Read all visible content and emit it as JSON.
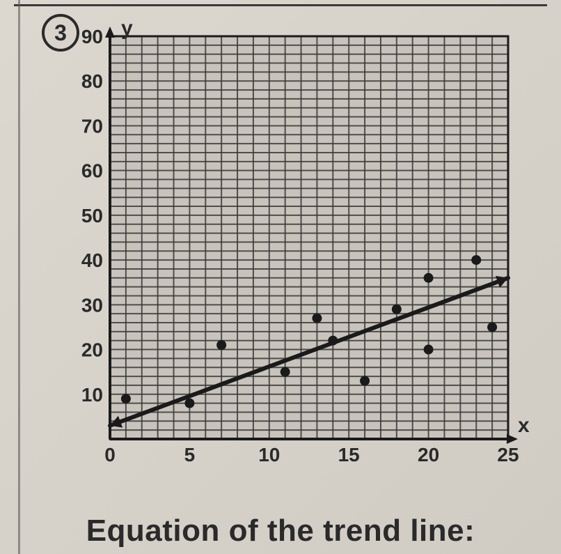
{
  "problem": {
    "number": "3"
  },
  "caption": "Equation of the trend line:",
  "chart": {
    "type": "scatter",
    "x_axis_label": "x",
    "y_axis_label": "y",
    "xlim": [
      0,
      25
    ],
    "ylim": [
      0,
      90
    ],
    "x_ticks": [
      0,
      5,
      10,
      15,
      20,
      25
    ],
    "y_ticks": [
      10,
      20,
      30,
      40,
      50,
      60,
      70,
      80,
      90
    ],
    "x_minor_step": 1,
    "y_minor_step": 2,
    "grid_color": "#3a3a3a",
    "grid_stroke": 2,
    "axis_color": "#1a1a1a",
    "axis_stroke": 4,
    "tick_label_fontsize": 28,
    "axis_label_fontsize": 30,
    "axis_label_fontweight": 900,
    "background_color": "#c8c4bc",
    "point_color": "#1a1a1a",
    "point_radius": 7,
    "trend_color": "#1a1a1a",
    "trend_stroke": 6,
    "trend_line": {
      "x1": 0,
      "y1": 3,
      "x2": 25,
      "y2": 36
    },
    "points": [
      {
        "x": 1,
        "y": 9
      },
      {
        "x": 5,
        "y": 8
      },
      {
        "x": 7,
        "y": 21
      },
      {
        "x": 11,
        "y": 15
      },
      {
        "x": 13,
        "y": 27
      },
      {
        "x": 14,
        "y": 22
      },
      {
        "x": 16,
        "y": 13
      },
      {
        "x": 18,
        "y": 29
      },
      {
        "x": 20,
        "y": 20
      },
      {
        "x": 20,
        "y": 36
      },
      {
        "x": 23,
        "y": 40
      },
      {
        "x": 24,
        "y": 25
      }
    ]
  }
}
